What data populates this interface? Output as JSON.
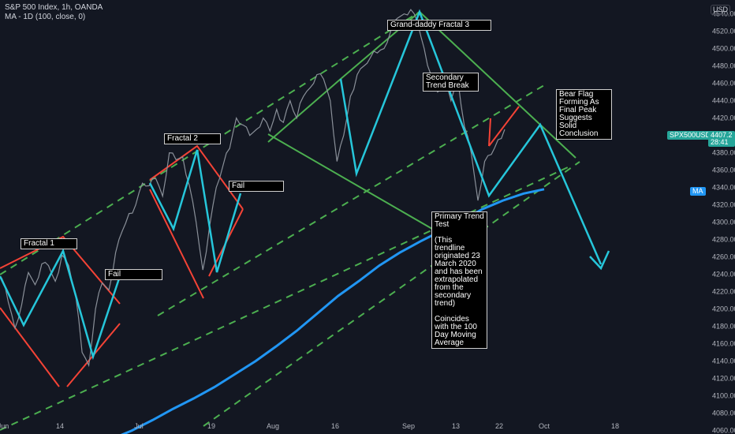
{
  "header": {
    "title": "S&P 500 Index, 1h, OANDA",
    "indicator": "MA - 1D (100, close, 0)"
  },
  "currency_button": "USD",
  "annotations": {
    "fractal1": "Fractal 1",
    "fractal2": "Fractal 2",
    "fractal3": "Grand-daddy Fractal 3",
    "fail1": "Fail",
    "fail2": "Fail",
    "secondary": "Secondary Trend Break",
    "primary": "Primary Trend Test\n\n(This trendline originated 23 March 2020 and has been extrapolated from the secondary trend)\n\nCoincides with the 100 Day Moving Average",
    "bearflag": "Bear Flag Forming As Final Peak Suggests Solid Conclusion"
  },
  "price_tag": {
    "symbol": "SPX500USD",
    "value": "4407.2",
    "countdown": "28:41"
  },
  "ma_tag": "MA",
  "colors": {
    "background": "#131722",
    "ma_line": "#2196f3",
    "green_channel": "#4caf50",
    "red_lines": "#f44336",
    "cyan_lines": "#26c6da",
    "tag_price": "#26a69a",
    "tag_ma": "#2196f3"
  },
  "chart_data": {
    "type": "line",
    "title": "S&P 500 Index, 1h, OANDA",
    "x_ticks": [
      "Jun",
      "14",
      "Jul",
      "19",
      "Aug",
      "16",
      "Sep",
      "13",
      "22",
      "Oct",
      "18"
    ],
    "y_ticks": [
      4060,
      4080,
      4100,
      4120,
      4140,
      4160,
      4180,
      4200,
      4220,
      4240,
      4260,
      4280,
      4300,
      4320,
      4340,
      4360,
      4380,
      4400,
      4420,
      4440,
      4460,
      4480,
      4500,
      4520,
      4540
    ],
    "ylim": [
      4056,
      4556
    ],
    "grid": false,
    "series": [
      {
        "name": "S&P 500 Index",
        "y": [
          4236,
          4208,
          4178,
          4205,
          4242,
          4228,
          4252,
          4250,
          4232,
          4262,
          4250,
          4218,
          4150,
          4135,
          4200,
          4230,
          4222,
          4265,
          4290,
          4310,
          4320,
          4345,
          4342,
          4350,
          4330,
          4380,
          4372,
          4375,
          4342,
          4300,
          4245,
          4295,
          4340,
          4365,
          4385,
          4420,
          4412,
          4400,
          4407,
          4420,
          4405,
          4430,
          4415,
          4440,
          4420,
          4445,
          4455,
          4470,
          4465,
          4440,
          4370,
          4400,
          4445,
          4470,
          4480,
          4490,
          4495,
          4500,
          4520,
          4535,
          4540,
          4545,
          4530,
          4500,
          4470,
          4450,
          4460,
          4440,
          4465,
          4410,
          4380,
          4325,
          4370,
          4378,
          4395,
          4407
        ]
      },
      {
        "name": "MA (100, close, 0)",
        "y": [
          4038,
          4050,
          4060,
          4072,
          4085,
          4097,
          4110,
          4125,
          4140,
          4157,
          4175,
          4195,
          4215,
          4232,
          4250,
          4265,
          4278,
          4290,
          4302,
          4315,
          4325,
          4333,
          4338
        ]
      }
    ]
  }
}
